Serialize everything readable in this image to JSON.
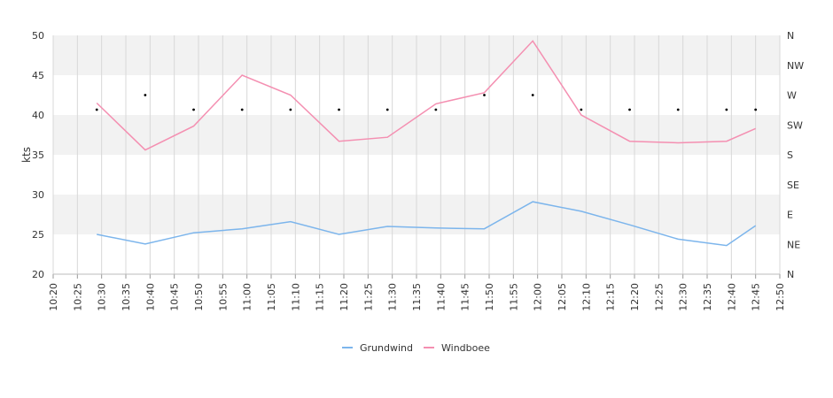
{
  "chart_data": {
    "type": "line",
    "title": "",
    "xlabel": "",
    "ylabel": "kts",
    "ylim": [
      20,
      50
    ],
    "y_ticks": [
      "20",
      "25",
      "30",
      "35",
      "40",
      "45",
      "50"
    ],
    "x_ticks": [
      "10:20",
      "10:25",
      "10:30",
      "10:35",
      "10:40",
      "10:45",
      "10:50",
      "10:55",
      "11:00",
      "11:05",
      "11:10",
      "11:15",
      "11:20",
      "11:25",
      "11:30",
      "11:35",
      "11:40",
      "11:45",
      "11:50",
      "11:55",
      "12:00",
      "12:05",
      "12:10",
      "12:15",
      "12:20",
      "12:25",
      "12:30",
      "12:35",
      "12:40",
      "12:45",
      "12:50"
    ],
    "xlim": [
      "10:20",
      "12:50"
    ],
    "y2_ticks": [
      "N",
      "NE",
      "E",
      "SE",
      "S",
      "SW",
      "W",
      "NW",
      "N"
    ],
    "grid": true,
    "legend_position": "bottom",
    "series": [
      {
        "name": "Grundwind",
        "color": "#7cb5ec",
        "points": [
          [
            "10:29",
            25.0
          ],
          [
            "10:39",
            23.8
          ],
          [
            "10:49",
            25.2
          ],
          [
            "10:59",
            25.7
          ],
          [
            "11:09",
            26.6
          ],
          [
            "11:19",
            25.0
          ],
          [
            "11:29",
            26.0
          ],
          [
            "11:39",
            25.8
          ],
          [
            "11:49",
            25.7
          ],
          [
            "11:59",
            29.1
          ],
          [
            "12:09",
            27.9
          ],
          [
            "12:19",
            26.2
          ],
          [
            "12:29",
            24.4
          ],
          [
            "12:39",
            23.6
          ],
          [
            "12:45",
            26.1
          ]
        ]
      },
      {
        "name": "Windboee",
        "color": "#f48fb1",
        "points": [
          [
            "10:29",
            41.5
          ],
          [
            "10:39",
            35.6
          ],
          [
            "10:49",
            38.6
          ],
          [
            "10:59",
            45.0
          ],
          [
            "11:09",
            42.5
          ],
          [
            "11:19",
            36.7
          ],
          [
            "11:29",
            37.2
          ],
          [
            "11:39",
            41.4
          ],
          [
            "11:49",
            42.8
          ],
          [
            "11:59",
            49.3
          ],
          [
            "12:09",
            40.0
          ],
          [
            "12:19",
            36.7
          ],
          [
            "12:29",
            36.5
          ],
          [
            "12:39",
            36.7
          ],
          [
            "12:45",
            38.3
          ]
        ]
      }
    ],
    "direction_markers": {
      "points": [
        [
          "10:29",
          "W"
        ],
        [
          "10:39",
          "W"
        ],
        [
          "10:49",
          "W"
        ],
        [
          "10:59",
          "W"
        ],
        [
          "11:09",
          "W"
        ],
        [
          "11:19",
          "W"
        ],
        [
          "11:29",
          "W"
        ],
        [
          "11:39",
          "W"
        ],
        [
          "11:49",
          "W"
        ],
        [
          "11:59",
          "W"
        ],
        [
          "12:09",
          "W"
        ],
        [
          "12:19",
          "W"
        ],
        [
          "12:29",
          "W"
        ],
        [
          "12:39",
          "W"
        ],
        [
          "12:45",
          "W"
        ]
      ],
      "offsets_deg": [
        -22,
        0,
        -22,
        -22,
        -22,
        -22,
        -22,
        -22,
        0,
        0,
        -22,
        -22,
        -22,
        -22,
        -22
      ],
      "color": "#000000"
    },
    "colors": {
      "band": "#f2f2f2",
      "grid": "#d8d8d8"
    }
  }
}
